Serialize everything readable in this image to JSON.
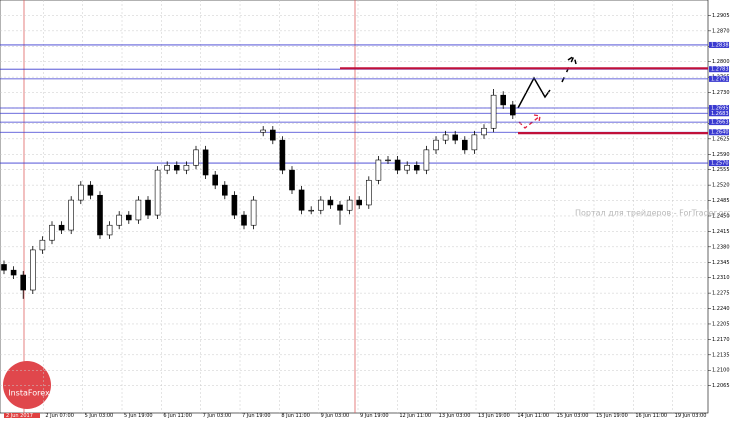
{
  "chart_data": {
    "type": "candlestick",
    "open": [
      1.234,
      1.2327,
      1.2316,
      1.2282,
      1.2373,
      1.2395,
      1.2429,
      1.2418,
      1.2486,
      1.252,
      1.2497,
      1.2407,
      1.2429,
      1.2452,
      1.2441,
      1.2486,
      1.2452,
      1.2554,
      1.2565,
      1.2554,
      1.2565,
      1.26,
      1.2543,
      1.252,
      1.2497,
      1.2452,
      1.2429,
      1.264,
      1.2645,
      1.2622,
      1.2554,
      1.2509,
      1.2463,
      1.2463,
      1.2486,
      1.2475,
      1.2463,
      1.2486,
      1.2475,
      1.2531,
      1.2577,
      1.2577,
      1.2554,
      1.2565,
      1.2554,
      1.26,
      1.2622,
      1.2634,
      1.2622,
      1.26,
      1.2634,
      1.2649,
      1.2724,
      1.2702
    ],
    "high": [
      1.2349,
      1.2336,
      1.2325,
      1.2382,
      1.2404,
      1.2438,
      1.2438,
      1.2495,
      1.2529,
      1.2529,
      1.2506,
      1.2438,
      1.2461,
      1.2461,
      1.2495,
      1.2495,
      1.2563,
      1.2574,
      1.2574,
      1.2574,
      1.2609,
      1.2609,
      1.2552,
      1.2529,
      1.2506,
      1.2461,
      1.2495,
      1.2654,
      1.2654,
      1.2631,
      1.2563,
      1.2518,
      1.2472,
      1.2495,
      1.2495,
      1.2484,
      1.2495,
      1.2495,
      1.254,
      1.2586,
      1.2586,
      1.2586,
      1.2574,
      1.2574,
      1.2609,
      1.2631,
      1.2643,
      1.2643,
      1.2631,
      1.2643,
      1.2658,
      1.2738,
      1.2733,
      1.2711
    ],
    "low": [
      1.2318,
      1.2307,
      1.2262,
      1.2273,
      1.2364,
      1.2386,
      1.2409,
      1.2409,
      1.2477,
      1.2488,
      1.2398,
      1.2398,
      1.242,
      1.2432,
      1.2432,
      1.2443,
      1.2443,
      1.2545,
      1.2545,
      1.2545,
      1.2556,
      1.2534,
      1.2511,
      1.2488,
      1.2443,
      1.242,
      1.242,
      1.2631,
      1.2613,
      1.2545,
      1.25,
      1.2454,
      1.2454,
      1.2454,
      1.2466,
      1.243,
      1.2454,
      1.2466,
      1.2466,
      1.2522,
      1.2568,
      1.2545,
      1.2545,
      1.2545,
      1.2545,
      1.2591,
      1.2613,
      1.2613,
      1.2591,
      1.2591,
      1.2625,
      1.264,
      1.2693,
      1.267
    ],
    "close": [
      1.2327,
      1.2316,
      1.2282,
      1.2373,
      1.2395,
      1.2429,
      1.2418,
      1.2486,
      1.252,
      1.2497,
      1.2407,
      1.2429,
      1.2452,
      1.2441,
      1.2486,
      1.2452,
      1.2554,
      1.2565,
      1.2554,
      1.2565,
      1.26,
      1.2543,
      1.252,
      1.2497,
      1.2452,
      1.2429,
      1.2486,
      1.2645,
      1.2622,
      1.2554,
      1.2509,
      1.2463,
      1.2463,
      1.2486,
      1.2475,
      1.2463,
      1.2486,
      1.2475,
      1.2531,
      1.2577,
      1.2577,
      1.2554,
      1.2565,
      1.2554,
      1.26,
      1.2622,
      1.2634,
      1.2622,
      1.26,
      1.2634,
      1.2649,
      1.2724,
      1.2702,
      1.2679
    ],
    "ylim": [
      1.2003,
      1.294
    ],
    "yticks": [
      1.2065,
      {
        "value": 1.21,
        "label": "1.2100"
      },
      1.2135,
      {
        "value": 1.217,
        "label": "1.2170"
      },
      1.2205,
      {
        "value": 1.224,
        "label": "1.2240"
      },
      1.2275,
      {
        "value": 1.231,
        "label": "1.2310"
      },
      1.2345,
      {
        "value": 1.238,
        "label": "1.2380"
      },
      1.2415,
      {
        "value": 1.245,
        "label": "1.2450"
      },
      1.2485,
      {
        "value": 1.252,
        "label": "1.2520"
      },
      1.2555,
      {
        "value": 1.259,
        "label": "1.2590"
      },
      1.2625,
      {
        "value": 1.266,
        "label": "1.2660"
      },
      1.2695,
      {
        "value": 1.273,
        "label": "1.2730"
      },
      1.2765,
      {
        "value": 1.28,
        "label": "1.2800"
      },
      1.2835,
      {
        "value": 1.287,
        "label": "1.2870"
      },
      1.2905
    ],
    "levels": [
      1.2838,
      1.2783,
      1.2761,
      1.2695,
      1.2683,
      1.2663,
      {
        "value": 1.264,
        "label": "1.2640"
      },
      {
        "value": 1.257,
        "label": "1.2570"
      }
    ],
    "level_color": "#3a3ad0",
    "target_lines": [
      1.2785,
      1.2638
    ],
    "target_color": "#c0103a",
    "grid": true,
    "x_labels": [
      "2 Jun 2017",
      "2 Jun 07:00",
      "5 Jun 03:00",
      "5 Jun 19:00",
      "6 Jun 11:00",
      "7 Jun 03:00",
      "7 Jun 19:00",
      "8 Jun 11:00",
      "9 Jun 03:00",
      "9 Jun 19:00",
      "12 Jun 11:00",
      "13 Jun 03:00",
      "13 Jun 19:00",
      "14 Jun 11:00",
      "15 Jun 03:00",
      "15 Jun 19:00",
      "16 Jun 11:00",
      "19 Jun 03:00"
    ],
    "watermark": "Портал для трейдеров - ForTrader.org",
    "logo": "InstaForex"
  }
}
